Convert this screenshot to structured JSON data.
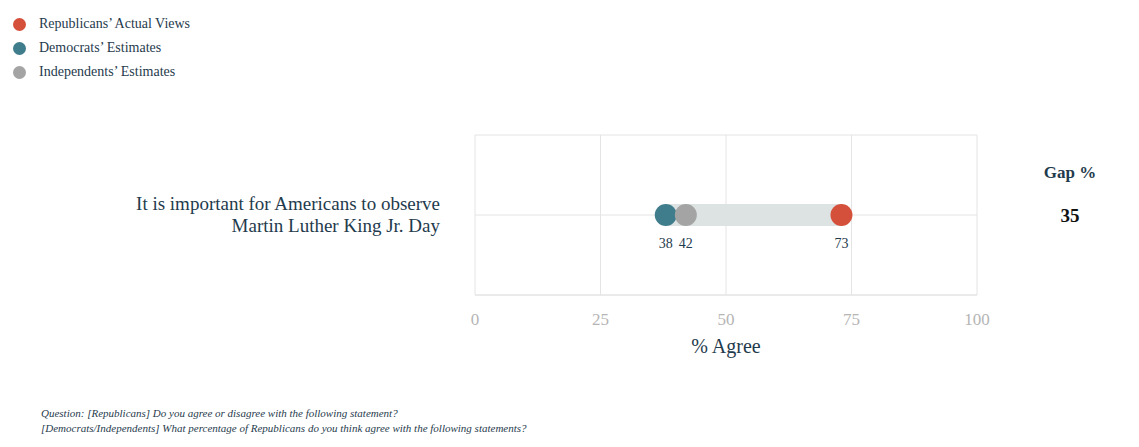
{
  "chart_data": {
    "type": "dot",
    "orientation": "horizontal",
    "categories": [
      "It is important for Americans to observe Martin Luther King Jr. Day"
    ],
    "series": [
      {
        "name": "Republicans’ Actual Views",
        "color": "#d5503a",
        "values": [
          73
        ]
      },
      {
        "name": "Democrats’ Estimates",
        "color": "#3f7d8c",
        "values": [
          38
        ]
      },
      {
        "name": "Independents’ Estimates",
        "color": "#a4a4a4",
        "values": [
          42
        ]
      }
    ],
    "xlim": [
      0,
      100
    ],
    "xticks": [
      0,
      25,
      50,
      75,
      100
    ],
    "xlabel": "% Agree",
    "grid": true,
    "legend": "top left",
    "data_labels": true,
    "gap": {
      "title": "Gap %",
      "values": [
        35
      ]
    },
    "notes": [
      "Question: [Republicans] Do you agree or disagree with the following statement?",
      "[Democrats/Independents] What percentage of Republicans do you think agree with the following statements?"
    ]
  }
}
